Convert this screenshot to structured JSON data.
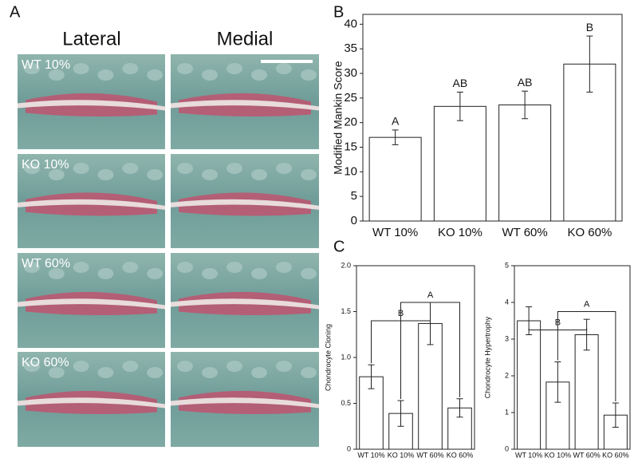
{
  "panel_a": {
    "label": "A",
    "columns": [
      "Lateral",
      "Medial"
    ],
    "rows": [
      "WT 10%",
      "KO 10%",
      "WT 60%",
      "KO 60%"
    ]
  },
  "chart_data": [
    {
      "type": "bar",
      "panel_label": "B",
      "y_label": "Modified Mankin Score",
      "categories": [
        "WT 10%",
        "KO 10%",
        "WT 60%",
        "KO 60%"
      ],
      "values": [
        17,
        23.3,
        23.6,
        31.9
      ],
      "errors": [
        1.5,
        2.9,
        2.8,
        5.7
      ],
      "annotations": [
        "A",
        "AB",
        "AB",
        "B"
      ],
      "color": "#ffffff",
      "ylim": [
        0,
        42
      ],
      "yticks": [
        0,
        5,
        10,
        15,
        20,
        25,
        30,
        35,
        40
      ]
    },
    {
      "type": "bar",
      "panel_label": "C",
      "y_label": "Chondrocyte Cloning",
      "categories": [
        "WT 10%",
        "KO 10%",
        "WT 60%",
        "KO 60%"
      ],
      "values": [
        0.79,
        0.39,
        1.37,
        0.45
      ],
      "errors": [
        0.13,
        0.14,
        0.23,
        0.1
      ],
      "brackets": [
        "B",
        "A"
      ],
      "color": "#ffffff",
      "ylim": [
        0,
        2
      ],
      "yticks": [
        0,
        0.5,
        {
          "value": 1,
          "label": "1.0"
        },
        1.5,
        {
          "value": 2,
          "label": "2.0"
        }
      ]
    },
    {
      "type": "bar",
      "y_label": "Chondrocyte Hypertrophy",
      "categories": [
        "WT 10%",
        "KO 10%",
        "WT 60%",
        "KO 60%"
      ],
      "values": [
        3.5,
        1.83,
        3.12,
        0.93
      ],
      "errors": [
        0.38,
        0.55,
        0.42,
        0.33
      ],
      "brackets": [
        "B",
        "A"
      ],
      "color": "#ffffff",
      "ylim": [
        0,
        5
      ],
      "yticks": [
        0,
        1,
        2,
        3,
        4,
        5
      ]
    }
  ]
}
